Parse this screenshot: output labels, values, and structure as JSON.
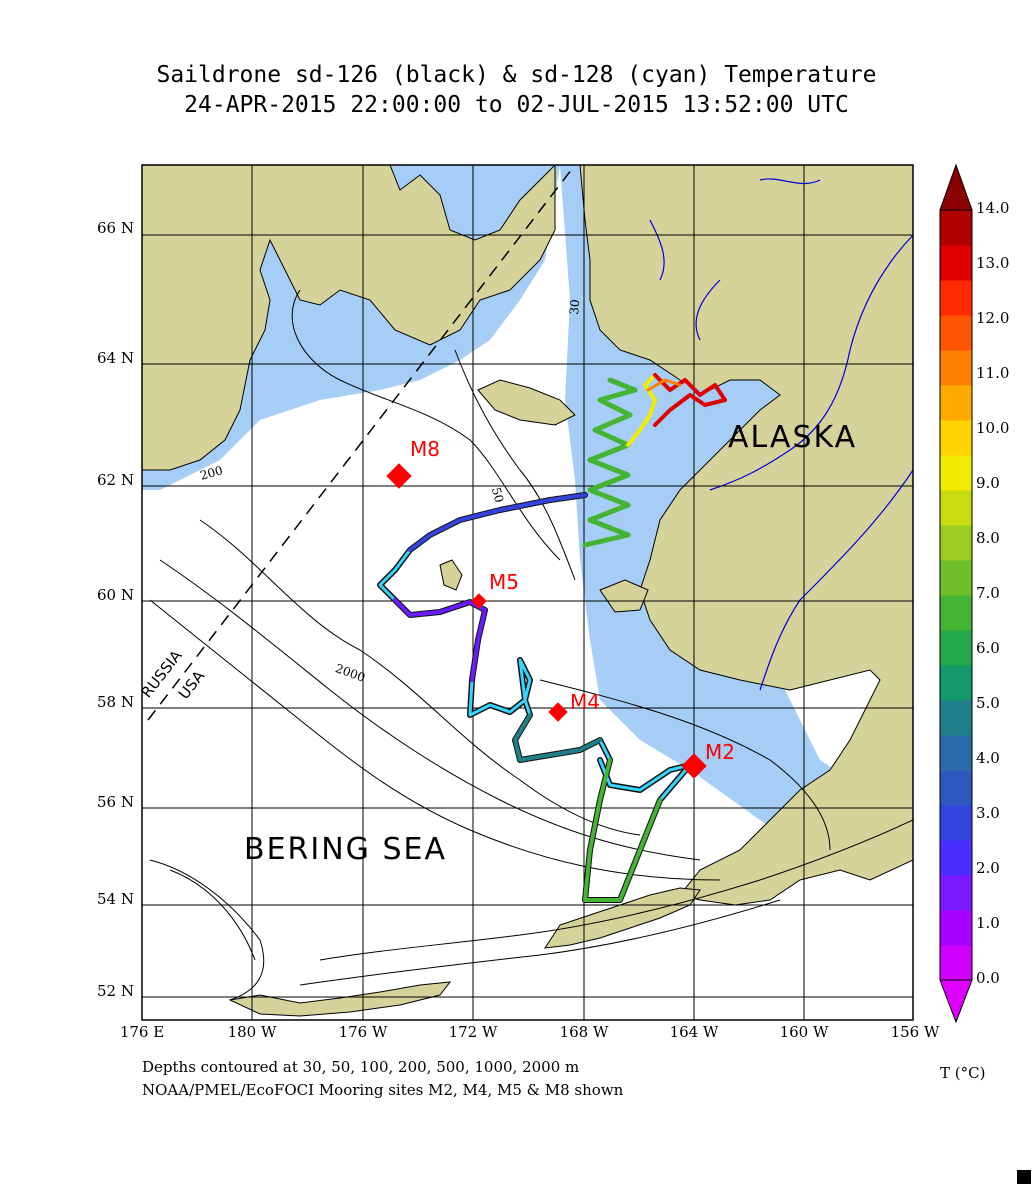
{
  "title": {
    "line1": "Saildrone sd-126 (black) & sd-128 (cyan) Temperature",
    "line2": "24-APR-2015 22:00:00 to 02-JUL-2015 13:52:00 UTC"
  },
  "lat_labels": [
    "66 N",
    "64 N",
    "62 N",
    "60 N",
    "58 N",
    "56 N",
    "54 N",
    "52 N"
  ],
  "lon_labels": [
    "176 E",
    "180 W",
    "176 W",
    "172 W",
    "168 W",
    "164 W",
    "160 W",
    "156 W"
  ],
  "region_labels": {
    "alaska": "ALASKA",
    "bering_sea": "BERING SEA",
    "russia": "RUSSIA",
    "usa": "USA"
  },
  "contour_labels": [
    "30",
    "50",
    "200",
    "2000"
  ],
  "moorings": [
    {
      "id": "M8",
      "lon": -174.7,
      "lat": 62.2
    },
    {
      "id": "M5",
      "lon": -171.7,
      "lat": 60.0
    },
    {
      "id": "M4",
      "lon": -168.9,
      "lat": 57.9
    },
    {
      "id": "M2",
      "lon": -164.1,
      "lat": 56.9
    }
  ],
  "colorbar": {
    "ticks": [
      "14.0",
      "13.0",
      "12.0",
      "11.0",
      "10.0",
      "9.0",
      "8.0",
      "7.0",
      "6.0",
      "5.0",
      "4.0",
      "3.0",
      "2.0",
      "1.0",
      "0.0"
    ],
    "unit": "T (°C)",
    "colors": [
      "#d000ff",
      "#a600ff",
      "#7a18ff",
      "#4a2eff",
      "#3344dd",
      "#2e58c0",
      "#2a6aa8",
      "#1f7f8a",
      "#149a6a",
      "#23a84a",
      "#45b333",
      "#6fbf2a",
      "#9bcc1f",
      "#c8dc10",
      "#f1ec00",
      "#ffd200",
      "#ffaa00",
      "#ff8000",
      "#ff5500",
      "#ff2a00",
      "#e00000",
      "#b00000"
    ]
  },
  "notes": {
    "depths": "Depths contoured at 30, 50, 100, 200, 500, 1000, 2000 m",
    "moorings": "NOAA/PMEL/EcoFOCI Mooring sites M2, M4, M5 & M8 shown"
  },
  "colors": {
    "land": "#d6d39a",
    "shallow_water": "#a5cdf5",
    "mooring": "#ff0000",
    "river": "#0000dd"
  }
}
